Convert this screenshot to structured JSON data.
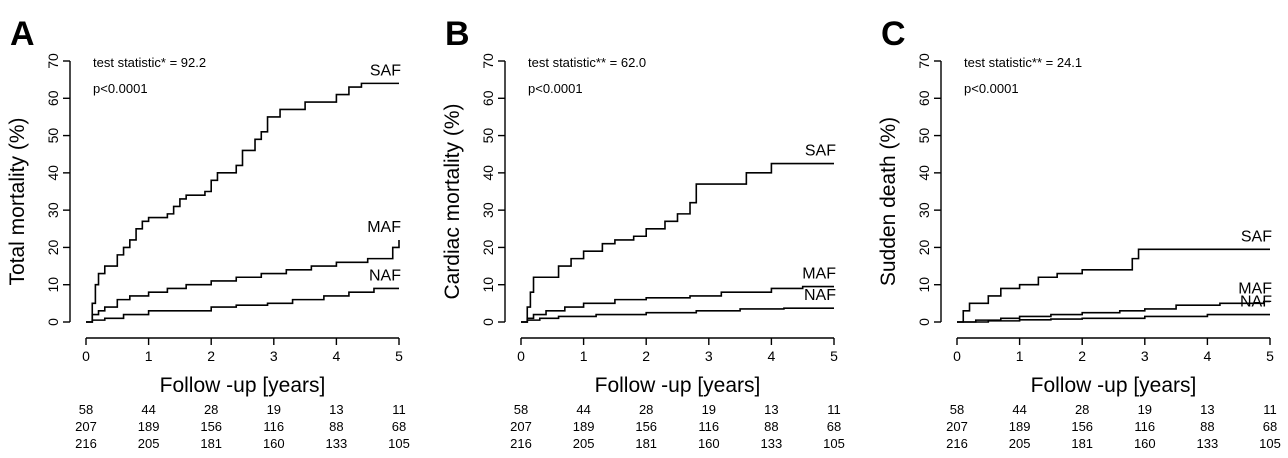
{
  "chart_data": [
    {
      "type": "line",
      "panel": "A",
      "ylabel": "Total mortality (%)",
      "xlabel": "Follow -up [years]",
      "xlim": [
        0,
        5
      ],
      "ylim": [
        0,
        70
      ],
      "xticks": [
        0,
        1,
        2,
        3,
        4,
        5
      ],
      "yticks": [
        0,
        10,
        20,
        30,
        40,
        50,
        60,
        70
      ],
      "annotations": [
        "test statistic* = 92.2",
        "p<0.0001"
      ],
      "series": [
        {
          "name": "SAF",
          "x": [
            0,
            0.1,
            0.15,
            0.2,
            0.3,
            0.5,
            0.6,
            0.7,
            0.8,
            0.9,
            1.0,
            1.3,
            1.4,
            1.5,
            1.6,
            1.9,
            2.0,
            2.1,
            2.4,
            2.5,
            2.7,
            2.8,
            2.9,
            3.0,
            3.1,
            3.3,
            3.5,
            3.7,
            4.0,
            4.2,
            4.4,
            5.0
          ],
          "y": [
            0,
            5,
            10,
            13,
            15,
            18,
            20,
            22,
            25,
            27,
            28,
            29,
            31,
            33,
            34,
            35,
            38,
            40,
            42,
            46,
            49,
            51,
            55,
            55,
            57,
            57,
            59,
            59,
            61,
            63,
            64,
            64
          ]
        },
        {
          "name": "MAF",
          "x": [
            0,
            0.1,
            0.2,
            0.3,
            0.5,
            0.7,
            1.0,
            1.3,
            1.6,
            2.0,
            2.4,
            2.8,
            3.2,
            3.6,
            4.0,
            4.5,
            4.9,
            5.0
          ],
          "y": [
            0,
            2,
            3,
            4,
            6,
            7,
            8,
            9,
            10,
            11,
            12,
            13,
            14,
            15,
            16,
            17,
            20,
            22
          ]
        },
        {
          "name": "NAF",
          "x": [
            0,
            0.1,
            0.3,
            0.6,
            1.0,
            1.5,
            2.0,
            2.4,
            2.9,
            3.3,
            3.8,
            4.2,
            4.6,
            5.0
          ],
          "y": [
            0,
            0.5,
            1,
            2,
            3,
            3,
            4,
            4.5,
            5,
            6,
            7,
            8,
            9,
            9
          ]
        }
      ],
      "risk_table": [
        [
          "58",
          "44",
          "28",
          "19",
          "13",
          "11"
        ],
        [
          "207",
          "189",
          "156",
          "116",
          "88",
          "68"
        ],
        [
          "216",
          "205",
          "181",
          "160",
          "133",
          "105"
        ]
      ]
    },
    {
      "type": "line",
      "panel": "B",
      "ylabel": "Cardiac mortality (%)",
      "xlabel": "Follow -up [years]",
      "xlim": [
        0,
        5
      ],
      "ylim": [
        0,
        70
      ],
      "xticks": [
        0,
        1,
        2,
        3,
        4,
        5
      ],
      "yticks": [
        0,
        10,
        20,
        30,
        40,
        50,
        60,
        70
      ],
      "annotations": [
        "test statistic** = 62.0",
        "p<0.0001"
      ],
      "series": [
        {
          "name": "SAF",
          "x": [
            0,
            0.1,
            0.15,
            0.2,
            0.5,
            0.6,
            0.8,
            1.0,
            1.3,
            1.5,
            1.8,
            2.0,
            2.3,
            2.5,
            2.7,
            2.8,
            3.0,
            3.6,
            4.0,
            5.0
          ],
          "y": [
            0,
            4,
            8,
            12,
            12,
            15,
            17,
            19,
            21,
            22,
            23,
            25,
            27,
            29,
            32,
            37,
            37,
            40,
            42.5,
            42.5
          ]
        },
        {
          "name": "MAF",
          "x": [
            0,
            0.1,
            0.2,
            0.4,
            0.7,
            1.0,
            1.5,
            2.0,
            2.7,
            3.2,
            4.0,
            4.5,
            5.0
          ],
          "y": [
            0,
            1,
            2,
            3,
            4,
            5,
            6,
            6.5,
            7,
            8,
            9,
            9.5,
            9.5
          ]
        },
        {
          "name": "NAF",
          "x": [
            0,
            0.1,
            0.3,
            0.6,
            1.2,
            2.0,
            2.8,
            3.5,
            4.2,
            5.0
          ],
          "y": [
            0,
            0.5,
            1,
            1.5,
            2,
            2.5,
            3,
            3.5,
            3.7,
            3.7
          ]
        }
      ],
      "risk_table": [
        [
          "58",
          "44",
          "28",
          "19",
          "13",
          "11"
        ],
        [
          "207",
          "189",
          "156",
          "116",
          "88",
          "68"
        ],
        [
          "216",
          "205",
          "181",
          "160",
          "133",
          "105"
        ]
      ]
    },
    {
      "type": "line",
      "panel": "C",
      "ylabel": "Sudden death (%)",
      "xlabel": "Follow -up [years]",
      "xlim": [
        0,
        5
      ],
      "ylim": [
        0,
        70
      ],
      "xticks": [
        0,
        1,
        2,
        3,
        4,
        5
      ],
      "yticks": [
        0,
        10,
        20,
        30,
        40,
        50,
        60,
        70
      ],
      "annotations": [
        "test statistic** = 24.1",
        "p<0.0001"
      ],
      "series": [
        {
          "name": "SAF",
          "x": [
            0,
            0.1,
            0.2,
            0.5,
            0.7,
            1.0,
            1.3,
            1.6,
            2.0,
            2.7,
            2.8,
            2.9,
            5.0
          ],
          "y": [
            0,
            3,
            5,
            7,
            9,
            10,
            12,
            13,
            14,
            14,
            17,
            19.5,
            19.5
          ]
        },
        {
          "name": "MAF",
          "x": [
            0,
            0.3,
            0.7,
            1.0,
            1.5,
            2.0,
            2.6,
            3.0,
            3.5,
            4.2,
            4.9,
            5.0
          ],
          "y": [
            0,
            0.5,
            1,
            1.5,
            2,
            2.5,
            3,
            3.5,
            4.5,
            5,
            5.5,
            5.5
          ]
        },
        {
          "name": "NAF",
          "x": [
            0,
            0.5,
            1.0,
            1.5,
            2.0,
            3.0,
            4.0,
            5.0
          ],
          "y": [
            0,
            0.3,
            0.6,
            0.8,
            1,
            1.5,
            2,
            2
          ]
        }
      ],
      "risk_table": [
        [
          "58",
          "44",
          "28",
          "19",
          "13",
          "11"
        ],
        [
          "207",
          "189",
          "156",
          "116",
          "88",
          "68"
        ],
        [
          "216",
          "205",
          "181",
          "160",
          "133",
          "105"
        ]
      ]
    }
  ]
}
